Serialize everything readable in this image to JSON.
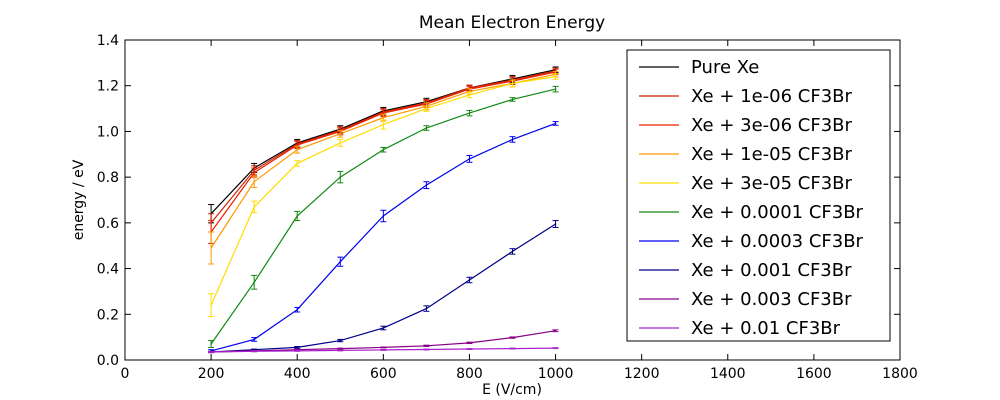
{
  "chart_data": {
    "type": "line",
    "title": "Mean Electron Energy",
    "xlabel": "E (V/cm)",
    "ylabel": "energy / eV",
    "xlim": [
      0,
      1800
    ],
    "ylim": [
      0.0,
      1.4
    ],
    "xticks": [
      0,
      200,
      400,
      600,
      800,
      1000,
      1200,
      1400,
      1600,
      1800
    ],
    "yticks": [
      0.0,
      0.2,
      0.4,
      0.6,
      0.8,
      1.0,
      1.2,
      1.4
    ],
    "xtick_labels": [
      "0",
      "200",
      "400",
      "600",
      "800",
      "1000",
      "1200",
      "1400",
      "1600",
      "1800"
    ],
    "ytick_labels": [
      "0.0",
      "0.2",
      "0.4",
      "0.6",
      "0.8",
      "1.0",
      "1.2",
      "1.4"
    ],
    "grid": false,
    "legend_position": "top-right",
    "x": [
      200,
      300,
      400,
      500,
      600,
      700,
      800,
      900,
      1000
    ],
    "series": [
      {
        "name": "Pure Xe",
        "color": "#000000",
        "values": [
          0.64,
          0.84,
          0.95,
          1.01,
          1.09,
          1.13,
          1.19,
          1.23,
          1.27
        ],
        "errors": [
          0.04,
          0.02,
          0.015,
          0.015,
          0.015,
          0.015,
          0.012,
          0.015,
          0.012
        ]
      },
      {
        "name": "Xe + 1e-06 CF3Br",
        "color": "#cc2200",
        "values": [
          0.6,
          0.83,
          0.945,
          1.005,
          1.085,
          1.125,
          1.19,
          1.225,
          1.265
        ],
        "errors": [
          0.04,
          0.02,
          0.015,
          0.015,
          0.015,
          0.015,
          0.012,
          0.015,
          0.012
        ]
      },
      {
        "name": "Xe + 3e-06 CF3Br",
        "color": "#ee2200",
        "values": [
          0.56,
          0.82,
          0.94,
          1.0,
          1.08,
          1.12,
          1.185,
          1.22,
          1.26
        ],
        "errors": [
          0.05,
          0.02,
          0.015,
          0.015,
          0.015,
          0.015,
          0.012,
          0.015,
          0.012
        ]
      },
      {
        "name": "Xe + 1e-05 CF3Br",
        "color": "#ff9900",
        "values": [
          0.49,
          0.78,
          0.92,
          0.99,
          1.06,
          1.11,
          1.175,
          1.21,
          1.25
        ],
        "errors": [
          0.07,
          0.025,
          0.015,
          0.015,
          0.015,
          0.015,
          0.012,
          0.015,
          0.012
        ]
      },
      {
        "name": "Xe + 3e-05 CF3Br",
        "color": "#ffdd00",
        "values": [
          0.24,
          0.67,
          0.86,
          0.95,
          1.03,
          1.1,
          1.16,
          1.21,
          1.24
        ],
        "errors": [
          0.05,
          0.025,
          0.012,
          0.015,
          0.02,
          0.012,
          0.012,
          0.015,
          0.012
        ]
      },
      {
        "name": "Xe + 0.0001 CF3Br",
        "color": "#118811",
        "values": [
          0.07,
          0.34,
          0.63,
          0.8,
          0.92,
          1.015,
          1.08,
          1.14,
          1.185
        ],
        "errors": [
          0.015,
          0.03,
          0.02,
          0.025,
          0.01,
          0.01,
          0.012,
          0.008,
          0.012
        ]
      },
      {
        "name": "Xe + 0.0003 CF3Br",
        "color": "#0000ee",
        "values": [
          0.04,
          0.09,
          0.22,
          0.43,
          0.63,
          0.765,
          0.88,
          0.965,
          1.035
        ],
        "errors": [
          0.005,
          0.008,
          0.01,
          0.02,
          0.025,
          0.015,
          0.015,
          0.012,
          0.008
        ]
      },
      {
        "name": "Xe + 0.001 CF3Br",
        "color": "#000088",
        "values": [
          0.035,
          0.045,
          0.055,
          0.085,
          0.14,
          0.225,
          0.35,
          0.475,
          0.595
        ],
        "errors": [
          0.003,
          0.003,
          0.004,
          0.005,
          0.008,
          0.012,
          0.012,
          0.012,
          0.015
        ]
      },
      {
        "name": "Xe + 0.003 CF3Br",
        "color": "#880088",
        "values": [
          0.035,
          0.04,
          0.045,
          0.05,
          0.055,
          0.062,
          0.075,
          0.098,
          0.128
        ],
        "errors": [
          0.002,
          0.002,
          0.002,
          0.002,
          0.002,
          0.003,
          0.003,
          0.003,
          0.004
        ]
      },
      {
        "name": "Xe + 0.01 CF3Br",
        "color": "#aa22cc",
        "values": [
          0.035,
          0.038,
          0.04,
          0.042,
          0.044,
          0.046,
          0.048,
          0.05,
          0.052
        ],
        "errors": [
          0.002,
          0.002,
          0.002,
          0.002,
          0.002,
          0.002,
          0.002,
          0.002,
          0.002
        ]
      }
    ]
  }
}
